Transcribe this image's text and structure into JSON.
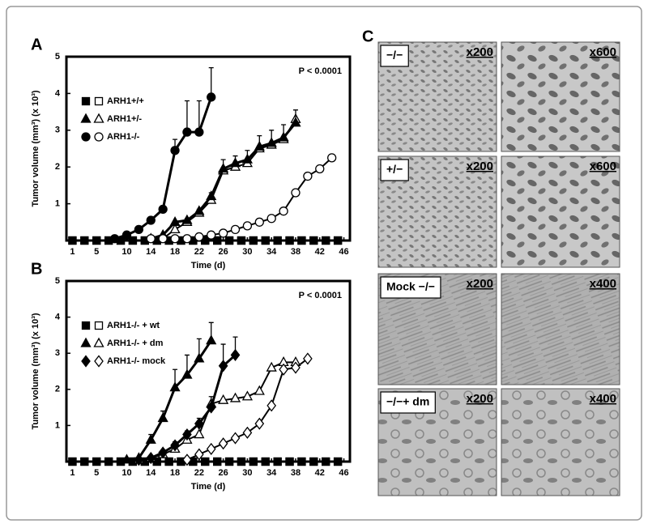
{
  "chart_data": [
    {
      "type": "line",
      "panel_label": "A",
      "annotation": "P < 0.0001",
      "xlabel": "Time (d)",
      "ylabel": "Tumor volume (mm³) (x 10³)",
      "xlim": [
        0,
        47
      ],
      "xticks": [
        1,
        5,
        10,
        14,
        18,
        22,
        26,
        30,
        34,
        38,
        42,
        46
      ],
      "ylim": [
        0,
        5
      ],
      "yticks": [
        1,
        2,
        3,
        4,
        5
      ],
      "color": "#000000",
      "series": [
        {
          "name": "ARH1+/+",
          "marker": "square",
          "filled": {
            "x": [
              1,
              3,
              5,
              7,
              9,
              11,
              13,
              15,
              17,
              19,
              21,
              23,
              25,
              27,
              29,
              31,
              33,
              35,
              37,
              39,
              41,
              43,
              45
            ],
            "values": [
              0,
              0,
              0,
              0,
              0,
              0,
              0,
              0,
              0,
              0,
              0,
              0,
              0,
              0,
              0,
              0,
              0,
              0,
              0,
              0,
              0,
              0,
              0
            ]
          },
          "open": {
            "x": [
              1,
              3,
              5,
              7,
              9,
              11,
              13,
              15,
              17,
              19,
              21,
              23,
              25,
              27,
              29,
              31,
              33,
              35,
              37,
              39,
              41,
              43,
              45
            ],
            "values": [
              0,
              0,
              0,
              0,
              0,
              0,
              0,
              0,
              0,
              0,
              0,
              0,
              0,
              0,
              0,
              0,
              0,
              0,
              0,
              0,
              0,
              0,
              0
            ]
          }
        },
        {
          "name": "ARH1+/-",
          "marker": "triangle",
          "filled": {
            "x": [
              14,
              16,
              18,
              20,
              22,
              24,
              26,
              28,
              30,
              32,
              34,
              36,
              38
            ],
            "values": [
              0.05,
              0.15,
              0.5,
              0.55,
              0.8,
              1.2,
              1.95,
              2.1,
              2.2,
              2.55,
              2.65,
              2.8,
              3.2
            ],
            "errors": [
              0,
              0,
              0,
              0.05,
              0.05,
              0.1,
              0.25,
              0.2,
              0.25,
              0.3,
              0.35,
              0.35,
              0.35
            ]
          },
          "open": {
            "x": [
              16,
              18,
              20,
              22,
              24,
              26,
              28,
              30,
              32,
              34,
              36,
              38
            ],
            "values": [
              0.05,
              0.3,
              0.5,
              0.75,
              1.1,
              1.9,
              2.0,
              2.1,
              2.5,
              2.6,
              2.75,
              3.3
            ]
          }
        },
        {
          "name": "ARH1-/-",
          "marker": "circle",
          "filled": {
            "x": [
              8,
              10,
              12,
              14,
              16,
              18,
              20,
              22,
              24
            ],
            "values": [
              0.05,
              0.15,
              0.3,
              0.55,
              0.85,
              2.45,
              2.95,
              2.95,
              3.9
            ],
            "errors": [
              0,
              0,
              0,
              0,
              0.05,
              0.3,
              0.85,
              0.85,
              0.8
            ]
          },
          "open": {
            "x": [
              14,
              16,
              18,
              20,
              22,
              24,
              26,
              28,
              30,
              32,
              34,
              36,
              38,
              40,
              42,
              44
            ],
            "values": [
              0.05,
              0.05,
              0.05,
              0.05,
              0.1,
              0.15,
              0.2,
              0.3,
              0.4,
              0.5,
              0.6,
              0.8,
              1.3,
              1.75,
              1.95,
              2.25
            ]
          }
        }
      ]
    },
    {
      "type": "line",
      "panel_label": "B",
      "annotation": "P < 0.0001",
      "xlabel": "Time (d)",
      "ylabel": "Tumor volume (mm³) (x 10³)",
      "xlim": [
        0,
        47
      ],
      "xticks": [
        1,
        5,
        10,
        14,
        18,
        22,
        26,
        30,
        34,
        38,
        42,
        46
      ],
      "ylim": [
        0,
        5
      ],
      "yticks": [
        1,
        2,
        3,
        4,
        5
      ],
      "color": "#000000",
      "series": [
        {
          "name": "ARH1-/- + wt",
          "marker": "square",
          "filled": {
            "x": [
              1,
              3,
              5,
              7,
              9,
              11,
              13,
              15,
              17,
              19,
              21,
              23,
              25,
              27,
              29,
              31,
              33,
              35,
              37,
              39,
              41,
              43,
              45
            ],
            "values": [
              0,
              0,
              0,
              0,
              0,
              0,
              0,
              0,
              0,
              0,
              0,
              0,
              0,
              0,
              0,
              0,
              0,
              0,
              0,
              0,
              0,
              0,
              0
            ]
          },
          "open": {
            "x": [
              1,
              3,
              5,
              7,
              9,
              11,
              13,
              15,
              17,
              19,
              21,
              23,
              25,
              27,
              29,
              31,
              33,
              35,
              37,
              39,
              41,
              43,
              45
            ],
            "values": [
              0,
              0,
              0,
              0,
              0,
              0,
              0,
              0,
              0,
              0,
              0,
              0,
              0,
              0,
              0,
              0,
              0,
              0,
              0,
              0,
              0,
              0,
              0
            ]
          }
        },
        {
          "name": "ARH1-/- + dm",
          "marker": "triangle",
          "filled": {
            "x": [
              10,
              12,
              14,
              16,
              18,
              20,
              22,
              24
            ],
            "values": [
              0.05,
              0.1,
              0.6,
              1.2,
              2.05,
              2.4,
              2.85,
              3.35
            ],
            "errors": [
              0,
              0,
              0.15,
              0.2,
              0.5,
              0.55,
              0.55,
              0.5
            ]
          },
          "open": {
            "x": [
              12,
              14,
              16,
              18,
              20,
              22,
              24,
              26,
              28,
              30,
              32,
              34,
              36,
              38
            ],
            "values": [
              0.05,
              0.1,
              0.2,
              0.35,
              0.6,
              0.75,
              1.6,
              1.7,
              1.75,
              1.8,
              1.95,
              2.6,
              2.75,
              2.75
            ]
          }
        },
        {
          "name": "ARH1-/- mock",
          "marker": "diamond",
          "filled": {
            "x": [
              12,
              14,
              16,
              18,
              20,
              22,
              24,
              26,
              28
            ],
            "values": [
              0.05,
              0.1,
              0.25,
              0.45,
              0.75,
              1.05,
              1.5,
              2.65,
              2.95
            ],
            "errors": [
              0,
              0,
              0,
              0.1,
              0.1,
              0.15,
              0.3,
              0.6,
              0.5
            ]
          },
          "open": {
            "x": [
              20,
              22,
              24,
              26,
              28,
              30,
              32,
              34,
              36,
              38,
              40
            ],
            "values": [
              0.05,
              0.2,
              0.35,
              0.5,
              0.65,
              0.8,
              1.05,
              1.55,
              2.55,
              2.6,
              2.85
            ]
          }
        }
      ]
    }
  ],
  "panel_c": {
    "label": "C",
    "rows": [
      {
        "genotype": "−/−",
        "left": "x200",
        "right": "x600"
      },
      {
        "genotype": "+/−",
        "left": "x200",
        "right": "x600"
      },
      {
        "genotype": "Mock −/−",
        "left": "x200",
        "right": "x400"
      },
      {
        "genotype": "−/−+ dm",
        "left": "x200",
        "right": "x400"
      }
    ]
  }
}
